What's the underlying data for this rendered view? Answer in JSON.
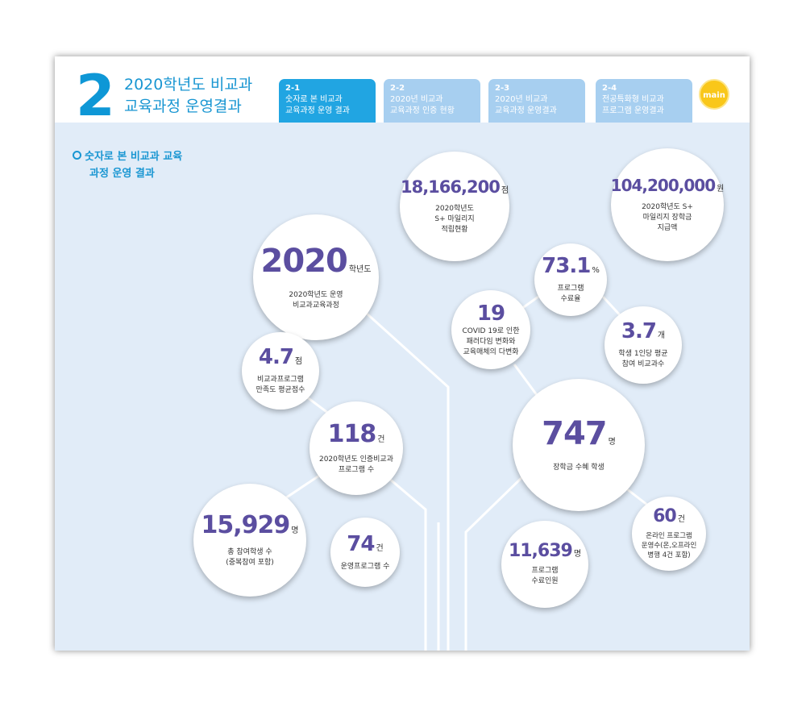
{
  "header": {
    "section_number": "2",
    "title_line1": "2020학년도 비교과",
    "title_line2": "교육과정 운영결과",
    "tabs": [
      {
        "num": "2-1",
        "line1": "숫자로 본 비교과",
        "line2": "교육과정 운영 결과",
        "active": true
      },
      {
        "num": "2-2",
        "line1": "2020년 비교과",
        "line2": "교육과정 인증 현황",
        "active": false
      },
      {
        "num": "2-3",
        "line1": "2020년 비교과",
        "line2": "교육과정 운영결과",
        "active": false
      },
      {
        "num": "2-4",
        "line1": "전공특화형 비교과",
        "line2": "프로그램 운영결과",
        "active": false
      }
    ],
    "main_button": "main"
  },
  "sidebar": {
    "heading_line1": "숫자로 본 비교과 교육",
    "heading_line2": "과정 운영 결과"
  },
  "stats": {
    "year": {
      "value": "2020",
      "unit": "학년도",
      "line1": "2020학년도 운영",
      "line2": "비교과교육과정"
    },
    "points": {
      "value": "18,166,200",
      "unit": "점",
      "line1": "2020학년도",
      "line2": "S+ 마일리지",
      "line3": "적립현황"
    },
    "scholarship_amount": {
      "value": "104,200,000",
      "unit": "원",
      "line1": "2020학년도 S+",
      "line2": "마일리지 장학금",
      "line3": "지급액"
    },
    "completion_rate": {
      "value": "73.1",
      "unit": "%",
      "line1": "프로그램",
      "line2": "수료율"
    },
    "covid": {
      "value": "19",
      "line1": "COVID 19로 인한",
      "line2": "패러다임 변화와",
      "line3": "교육매체의 다변화"
    },
    "per_student": {
      "value": "3.7",
      "unit": "개",
      "line1": "학생 1인당 평균",
      "line2": "참여 비교과수"
    },
    "satisfaction": {
      "value": "4.7",
      "unit": "점",
      "line1": "비교과프로그램",
      "line2": "만족도 평균점수"
    },
    "certified": {
      "value": "118",
      "unit": "건",
      "line1": "2020학년도 인증비교과",
      "line2": "프로그램 수"
    },
    "scholarship_students": {
      "value": "747",
      "unit": "명",
      "line1": "장학금 수혜 학생"
    },
    "participants": {
      "value": "15,929",
      "unit": "명",
      "line1": "총 참여학생 수",
      "line2": "(중복참여 포함)"
    },
    "operated": {
      "value": "74",
      "unit": "건",
      "line1": "운영프로그램 수"
    },
    "online": {
      "value": "60",
      "unit": "건",
      "line1": "온라인 프로그램",
      "line2": "운영수(온,오프라인",
      "line3": "병행 4건 포함)"
    },
    "completers": {
      "value": "11,639",
      "unit": "명",
      "line1": "프로그램",
      "line2": "수료인원"
    }
  },
  "colors": {
    "accent": "#1996d2",
    "tab_active": "#21a5e2",
    "tab_inactive": "#a7cff0",
    "number": "#5b4ea0",
    "background": "#e1ecf8",
    "main_button": "#f9c71a"
  }
}
